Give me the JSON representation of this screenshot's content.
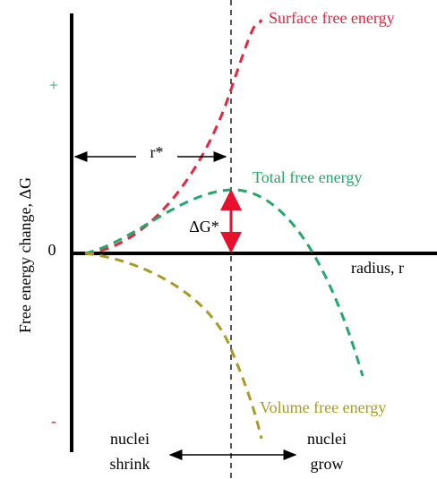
{
  "axes": {
    "y_label": "Free energy change, ΔG",
    "x_label": "radius, r",
    "origin": "0",
    "plus": "+",
    "minus": "-"
  },
  "curves": {
    "surface": "Surface free energy",
    "total": "Total free energy",
    "volume": "Volume free energy"
  },
  "markers": {
    "critical_radius": "r*",
    "barrier": "ΔG*"
  },
  "regions": {
    "left": [
      "nuclei",
      "shrink"
    ],
    "right": [
      "nuclei",
      "grow"
    ]
  }
}
